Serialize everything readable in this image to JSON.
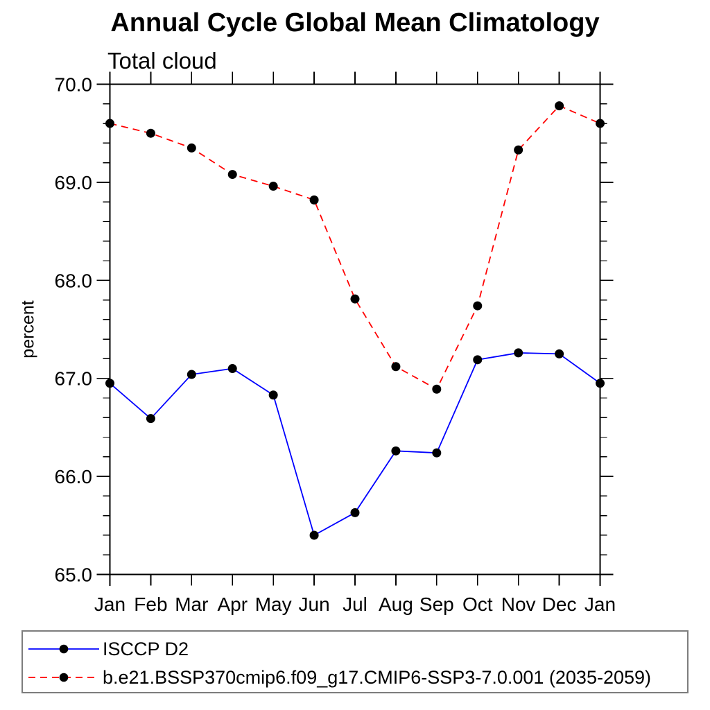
{
  "header": {
    "title": "Annual Cycle Global Mean Climatology",
    "subtitle": "Total cloud"
  },
  "chart_data": {
    "type": "line",
    "title": "Annual Cycle Global Mean Climatology",
    "subtitle": "Total cloud",
    "xlabel": "",
    "ylabel": "percent",
    "categories": [
      "Jan",
      "Feb",
      "Mar",
      "Apr",
      "May",
      "Jun",
      "Jul",
      "Aug",
      "Sep",
      "Oct",
      "Nov",
      "Dec",
      "Jan"
    ],
    "ylim": [
      65.0,
      70.0
    ],
    "ytick_major": [
      65.0,
      66.0,
      67.0,
      68.0,
      69.0,
      70.0
    ],
    "ytick_labels": [
      "65.0",
      "66.0",
      "67.0",
      "68.0",
      "69.0",
      "70.0"
    ],
    "ytick_minor_step": 0.2,
    "grid": false,
    "legend_position": "bottom-box",
    "axis_color": "#000000",
    "marker_color": "#000000",
    "series": [
      {
        "name": "ISCCP D2",
        "color": "#0000ff",
        "line_style": "solid",
        "marker": "circle",
        "values": [
          66.95,
          66.59,
          67.04,
          67.1,
          66.83,
          65.4,
          65.63,
          66.26,
          66.24,
          67.19,
          67.26,
          67.25,
          66.95
        ]
      },
      {
        "name": "b.e21.BSSP370cmip6.f09_g17.CMIP6-SSP3-7.0.001 (2035-2059)",
        "color": "#ff0000",
        "line_style": "dashed",
        "marker": "circle",
        "values": [
          69.6,
          69.5,
          69.35,
          69.08,
          68.96,
          68.82,
          67.81,
          67.12,
          66.89,
          67.74,
          69.33,
          69.78,
          69.6
        ]
      }
    ]
  }
}
